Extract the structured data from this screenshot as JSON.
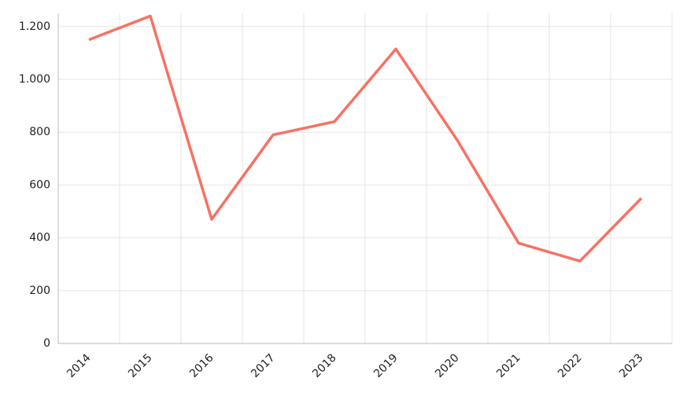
{
  "chart_data": {
    "type": "line",
    "categories": [
      "2014",
      "2015",
      "2016",
      "2017",
      "2018",
      "2019",
      "2020",
      "2021",
      "2022",
      "2023"
    ],
    "series": [
      {
        "color": "#f87164",
        "values": [
          1150,
          1240,
          470,
          790,
          840,
          1115,
          770,
          380,
          312,
          550
        ]
      }
    ],
    "ylim": [
      0,
      1250
    ],
    "yticks": [
      0,
      200,
      400,
      600,
      800,
      {
        "value": 1000,
        "label": "1.000"
      },
      {
        "value": 1200,
        "label": "1.200"
      }
    ],
    "grid": true
  }
}
